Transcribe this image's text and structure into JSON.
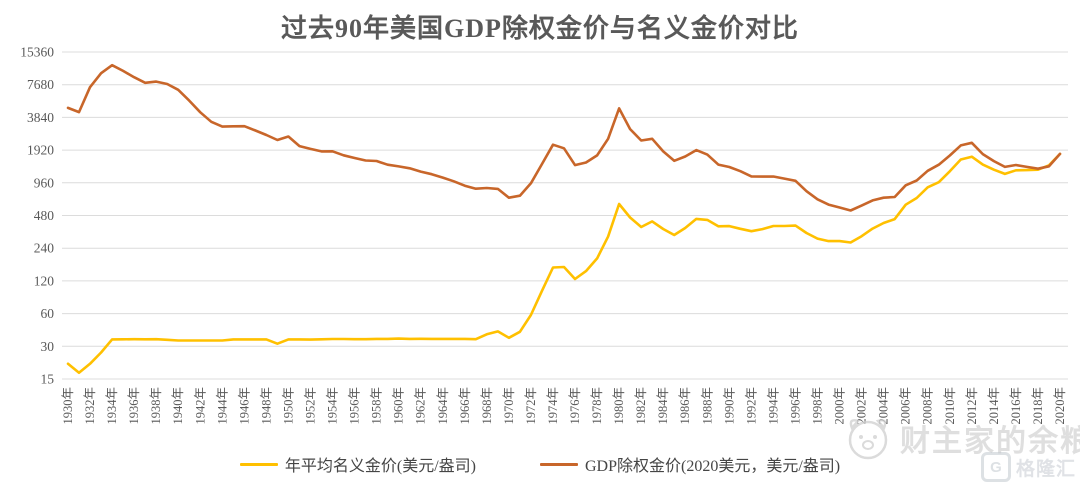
{
  "title": "过去90年美国GDP除权金价与名义金价对比",
  "chart_data": {
    "type": "line",
    "title": "过去90年美国GDP除权金价与名义金价对比",
    "y_scale": "log2",
    "ylim": [
      15,
      15360
    ],
    "y_ticks": [
      15360,
      7680,
      3840,
      1920,
      960,
      480,
      240,
      120,
      60,
      30,
      15
    ],
    "grid": "horizontal",
    "legend_position": "bottom",
    "x_start_year": 1930,
    "x_end_year": 2020,
    "x_tick_step": 2,
    "x_tick_labels": [
      "1930年",
      "1932年",
      "1934年",
      "1936年",
      "1938年",
      "1940年",
      "1942年",
      "1944年",
      "1946年",
      "1948年",
      "1950年",
      "1952年",
      "1954年",
      "1956年",
      "1958年",
      "1960年",
      "1962年",
      "1964年",
      "1966年",
      "1968年",
      "1970年",
      "1972年",
      "1974年",
      "1976年",
      "1978年",
      "1980年",
      "1982年",
      "1984年",
      "1986年",
      "1988年",
      "1990年",
      "1992年",
      "1994年",
      "1996年",
      "1998年",
      "2000年",
      "2002年",
      "2004年",
      "2006年",
      "2008年",
      "2010年",
      "2012年",
      "2014年",
      "2016年",
      "2018年",
      "2020年"
    ],
    "series": [
      {
        "name": "年平均名义金价(美元/盎司)",
        "color": "#FFC000",
        "values": [
          20.7,
          17.1,
          20.7,
          26.3,
          34.7,
          34.8,
          34.9,
          34.8,
          34.9,
          34.4,
          33.9,
          33.9,
          33.9,
          33.9,
          33.9,
          34.7,
          34.7,
          34.7,
          34.7,
          31.7,
          34.7,
          34.7,
          34.6,
          34.8,
          35.0,
          35.0,
          34.9,
          34.9,
          35.1,
          35.1,
          35.3,
          35.1,
          35.2,
          35.1,
          35.1,
          35.1,
          35.1,
          34.9,
          38.7,
          41.1,
          35.9,
          40.8,
          58.2,
          97.3,
          159.3,
          161.0,
          124.8,
          147.7,
          193.2,
          306.7,
          612.6,
          460.0,
          375.9,
          424.0,
          360.6,
          317.3,
          367.9,
          446.5,
          437.0,
          381.4,
          383.5,
          362.1,
          343.8,
          359.8,
          384.0,
          384.2,
          387.9,
          331.0,
          294.2,
          278.9,
          279.1,
          271.0,
          309.7,
          363.4,
          409.2,
          444.5,
          603.5,
          695.4,
          871.9,
          972.4,
          1224.5,
          1571.5,
          1669.0,
          1411.2,
          1266.4,
          1160.1,
          1250.8,
          1257.2,
          1268.5,
          1392.6,
          1769.6
        ]
      },
      {
        "name": "GDP除权金价(2020美元，美元/盎司)",
        "color": "#C8662A",
        "values": [
          4701,
          4300,
          7284,
          9800,
          11600,
          10300,
          9000,
          8000,
          8200,
          7800,
          6899,
          5485,
          4275,
          3495,
          3159,
          3182,
          3189,
          2908,
          2644,
          2380,
          2560,
          2092,
          1969,
          1869,
          1873,
          1719,
          1623,
          1539,
          1523,
          1408,
          1359,
          1306,
          1218,
          1151,
          1071,
          990,
          902,
          848,
          859,
          843,
          700,
          730,
          949,
          1430,
          2151,
          1996,
          1398,
          1477,
          1716,
          2438,
          4650,
          2999,
          2353,
          2438,
          1868,
          1529,
          1678,
          1920,
          1744,
          1411,
          1342,
          1228,
          1100,
          1094,
          1098,
          1049,
          1001,
          804,
          677,
          605,
          569,
          534,
          592,
          661,
          700,
          711,
          911,
          1008,
          1238,
          1410,
          1714,
          2122,
          2240,
          1764,
          1520,
          1346,
          1401,
          1345,
          1294,
          1361,
          1770
        ]
      }
    ]
  },
  "watermark": {
    "text": "财主家的余粮",
    "icon": "mascot-face-icon"
  },
  "logo": {
    "text": "格隆汇",
    "glyph": "G",
    "icon": "gelonghui-g-icon"
  }
}
